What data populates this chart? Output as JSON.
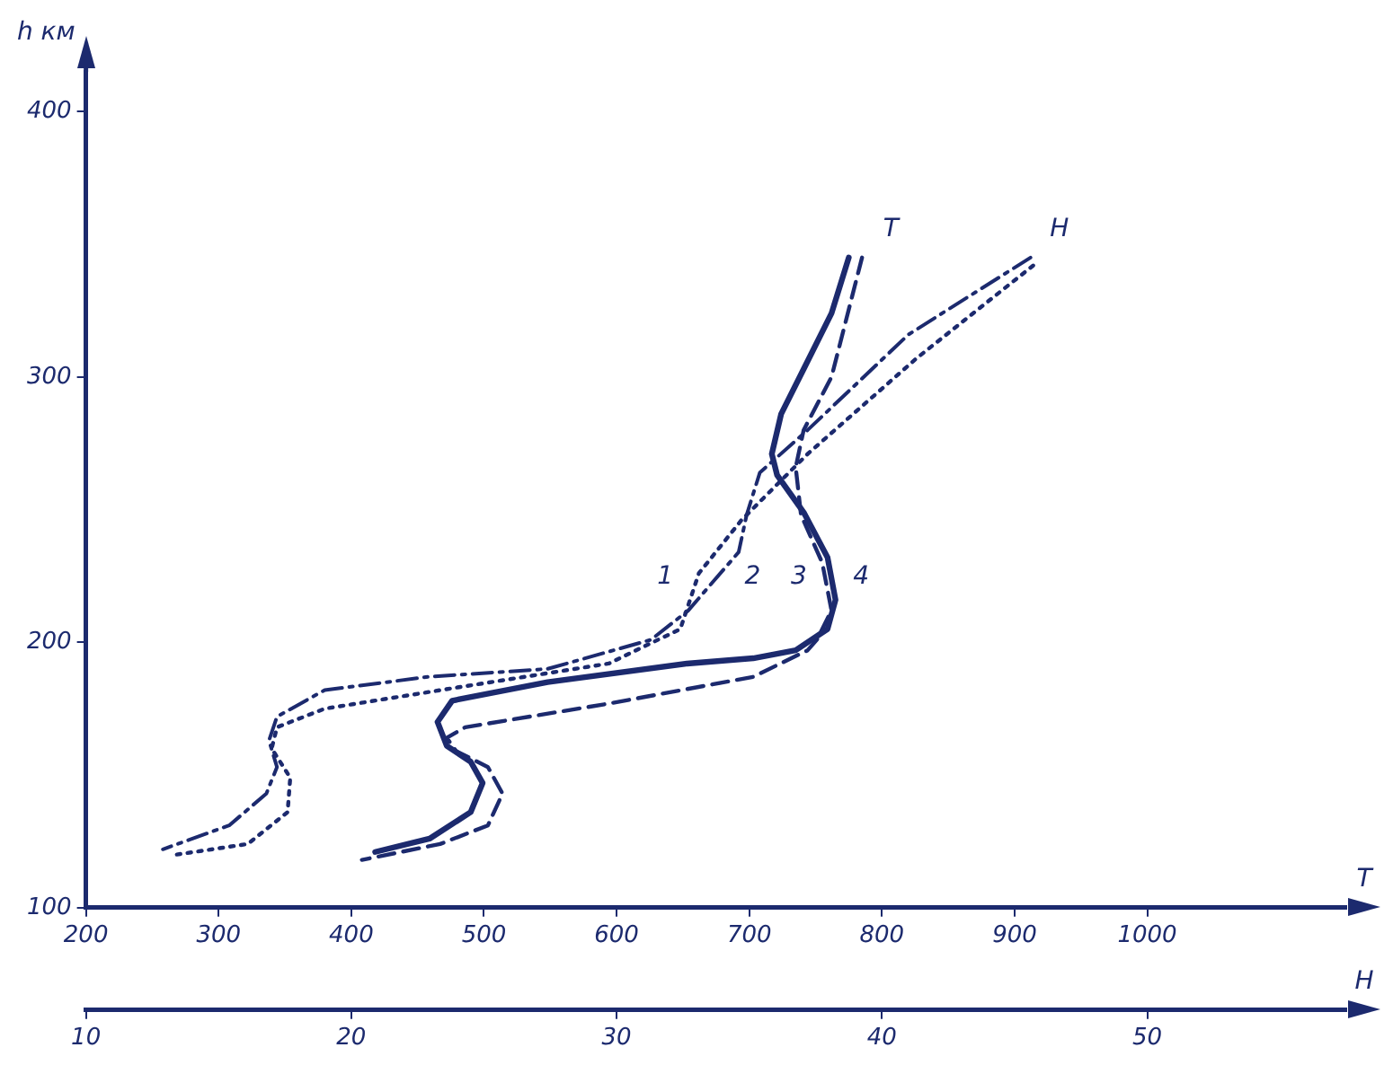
{
  "chart_data": {
    "type": "line",
    "ylabel": "h км",
    "xlabel": "T",
    "x2label": "H",
    "xlim": [
      200,
      1150
    ],
    "xticks": [
      200,
      300,
      400,
      500,
      600,
      700,
      800,
      900,
      1000
    ],
    "x2lim": [
      10,
      57.5
    ],
    "x2ticks": [
      10,
      20,
      30,
      40,
      50
    ],
    "ylim": [
      100,
      415
    ],
    "yticks": [
      100,
      200,
      300,
      400
    ],
    "grid": false,
    "legend": false,
    "marker": "none",
    "annotations": [
      "T",
      "H"
    ],
    "series": [
      {
        "name": "1",
        "color": "#1c2a6e",
        "line_style": "dotted",
        "axis": "x2",
        "x": [
          45.7,
          41.3,
          37.2,
          34.7,
          33.1,
          32.4,
          29.7,
          24.0,
          19.0,
          17.2,
          17.0,
          17.7,
          17.6,
          16.1,
          13.4
        ],
        "values": [
          342,
          307,
          271,
          246,
          226,
          205,
          192,
          183,
          175,
          168,
          160,
          149,
          136,
          124,
          120
        ]
      },
      {
        "name": "2",
        "color": "#1c2a6e",
        "line_style": "dashdot",
        "axis": "x2",
        "x": [
          45.6,
          41.0,
          37.2,
          35.4,
          34.9,
          34.6,
          32.7,
          31.3,
          27.4,
          22.9,
          19.0,
          17.2,
          16.9,
          17.2,
          16.8,
          15.4,
          12.9
        ],
        "values": [
          345,
          316,
          280,
          264,
          248,
          234,
          212,
          201,
          190,
          187,
          182,
          172,
          163,
          153,
          143,
          131,
          122
        ]
      },
      {
        "name": "3",
        "color": "#1c2a6e",
        "line_style": "solid",
        "x": [
          775,
          762,
          741,
          724,
          717,
          721,
          741,
          759,
          765,
          759,
          735,
          703,
          653,
          548,
          476,
          465,
          472,
          490,
          499,
          490,
          459,
          418
        ],
        "values": [
          345,
          324,
          303,
          286,
          271,
          263,
          249,
          232,
          216,
          205,
          197,
          194,
          192,
          185,
          178,
          170,
          161,
          155,
          147,
          136,
          126,
          121
        ]
      },
      {
        "name": "4",
        "color": "#1c2a6e",
        "line_style": "dashed",
        "x": [
          785,
          762,
          741,
          735,
          739,
          755,
          762,
          751,
          744,
          703,
          595,
          486,
          472,
          479,
          503,
          514,
          503,
          467,
          408
        ],
        "values": [
          345,
          300,
          280,
          266,
          248,
          230,
          212,
          201,
          197,
          187,
          177,
          168,
          164,
          159,
          153,
          143,
          131,
          124,
          118
        ]
      }
    ]
  }
}
